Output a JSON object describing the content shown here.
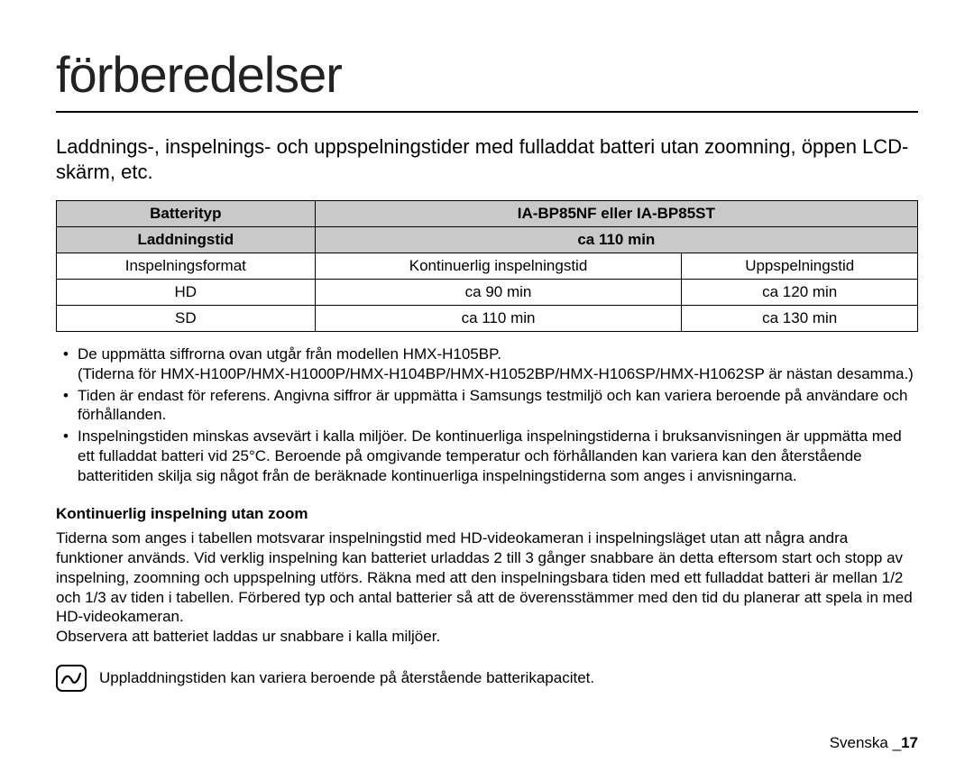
{
  "title": "förberedelser",
  "subtitle": "Laddnings-, inspelnings- och uppspelningstider med fulladdat batteri utan zoomning, öppen LCD-skärm, etc.",
  "table": {
    "header1": {
      "left": "Batterityp",
      "right": "IA-BP85NF eller IA-BP85ST"
    },
    "header2": {
      "left": "Laddningstid",
      "right": "ca 110 min"
    },
    "subheader": {
      "c1": "Inspelningsformat",
      "c2": "Kontinuerlig inspelningstid",
      "c3": "Uppspelningstid"
    },
    "rows": [
      {
        "c1": "HD",
        "c2": "ca 90 min",
        "c3": "ca 120 min"
      },
      {
        "c1": "SD",
        "c2": "ca 110 min",
        "c3": "ca 130 min"
      }
    ],
    "header_bg": "#c9c9c9",
    "border_color": "#000000"
  },
  "bullets": [
    "De uppmätta siffrorna ovan utgår från modellen HMX-H105BP.\n(Tiderna för HMX-H100P/HMX-H1000P/HMX-H104BP/HMX-H1052BP/HMX-H106SP/HMX-H1062SP är nästan desamma.)",
    "Tiden är endast för referens. Angivna siffror är uppmätta i Samsungs testmiljö och kan variera beroende på användare och förhållanden.",
    "Inspelningstiden minskas avsevärt i kalla miljöer. De kontinuerliga inspelningstiderna i bruksanvisningen är uppmätta med ett fulladdat batteri vid 25°C. Beroende på omgivande temperatur och förhållanden kan variera kan den återstående batteritiden skilja sig något från de beräknade kontinuerliga inspelningstiderna som anges i anvisningarna."
  ],
  "section_heading": "Kontinuerlig inspelning utan zoom",
  "body_text": "Tiderna som anges i tabellen motsvarar inspelningstid med HD-videokameran i inspelningsläget utan att några andra funktioner används. Vid verklig inspelning kan batteriet urladdas 2 till 3 gånger snabbare än detta eftersom start och stopp av inspelning, zoomning och uppspelning utförs. Räkna med att den inspelningsbara tiden med ett fulladdat batteri är mellan 1/2 och 1/3 av tiden i tabellen. Förbered typ och antal batterier så att de överensstämmer med den tid du planerar att spela in med HD-videokameran.\nObservera att batteriet laddas ur snabbare i kalla miljöer.",
  "note_text": "Uppladdningstiden kan variera beroende på återstående batterikapacitet.",
  "footer": {
    "label": "Svenska _",
    "page": "17"
  }
}
